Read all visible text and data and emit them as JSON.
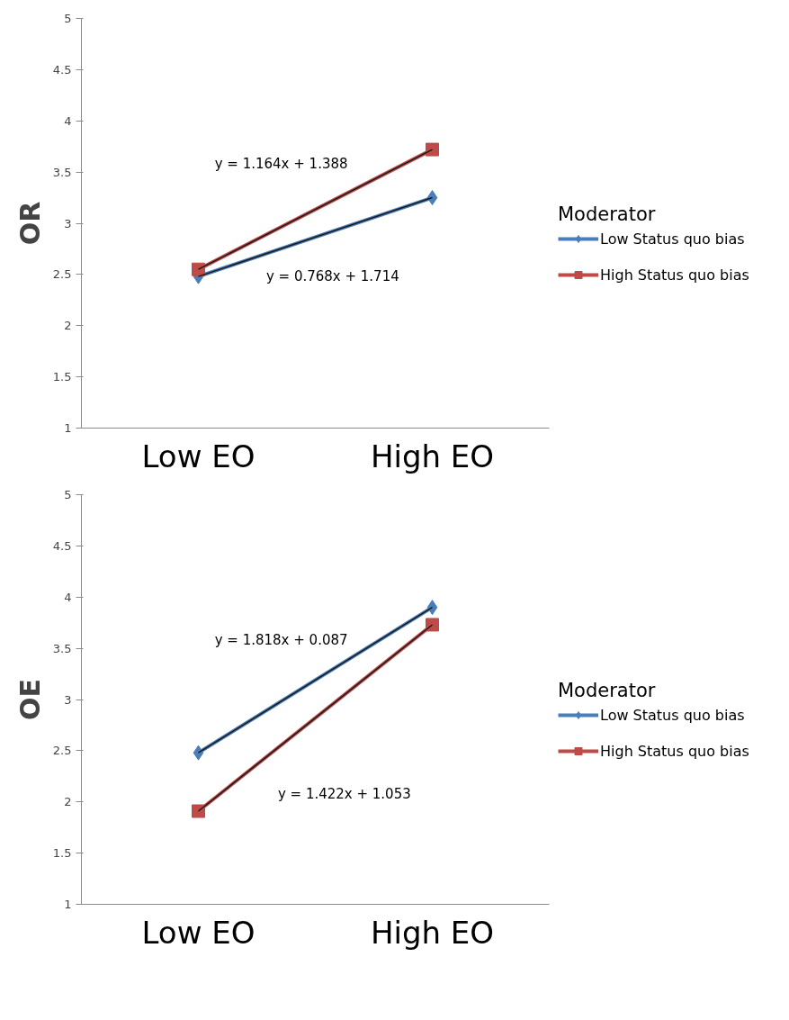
{
  "chart_data": [
    {
      "type": "line",
      "ylabel": "OR",
      "legend_title": "Moderator",
      "legend": "right",
      "grid": false,
      "categories": [
        "Low EO",
        "High EO"
      ],
      "ylim": [
        1,
        5
      ],
      "yticks": [
        1,
        1.5,
        2,
        2.5,
        3,
        3.5,
        4,
        4.5,
        5
      ],
      "series": [
        {
          "name": "Low Status quo bias",
          "color": "#4a7ebb",
          "marker": "diamond",
          "values": [
            2.48,
            3.25
          ]
        },
        {
          "name": "High Status quo bias",
          "color": "#be4b48",
          "marker": "square",
          "values": [
            2.55,
            3.72
          ]
        },
        {
          "type": "line",
          "color": "#1a1a1a",
          "marker": "none",
          "x": [
            "Low EO",
            "High EO"
          ],
          "values": [
            2.55,
            3.72
          ]
        },
        {
          "type": "line",
          "color": "#1a1a1a",
          "marker": "none",
          "x": [
            "Low EO",
            "High EO"
          ],
          "values": [
            2.48,
            3.25
          ]
        }
      ],
      "annotations": [
        "y = 1.164x + 1.388",
        "y = 0.768x + 1.714"
      ]
    },
    {
      "type": "line",
      "ylabel": "OE",
      "legend_title": "Moderator",
      "legend": "right",
      "grid": false,
      "categories": [
        "Low EO",
        "High EO"
      ],
      "ylim": [
        1,
        5
      ],
      "yticks": [
        1,
        1.5,
        2,
        2.5,
        3,
        3.5,
        4,
        4.5,
        5
      ],
      "series": [
        {
          "name": "Low Status quo bias",
          "color": "#4a7ebb",
          "marker": "diamond",
          "values": [
            2.48,
            3.9
          ]
        },
        {
          "name": "High Status quo bias",
          "color": "#be4b48",
          "marker": "square",
          "values": [
            1.91,
            3.73
          ]
        },
        {
          "type": "line",
          "color": "#1a1a1a",
          "marker": "none",
          "x": [
            "Low EO",
            "High EO"
          ],
          "values": [
            2.48,
            3.9
          ]
        },
        {
          "type": "line",
          "color": "#1a1a1a",
          "marker": "none",
          "x": [
            "Low EO",
            "High EO"
          ],
          "values": [
            1.91,
            3.73
          ]
        }
      ],
      "annotations": [
        "y = 1.818x + 0.087",
        "y = 1.422x + 1.053"
      ]
    }
  ]
}
